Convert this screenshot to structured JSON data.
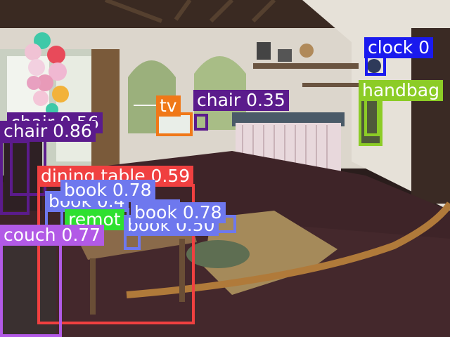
{
  "image": {
    "description_title": "Object detection overlay on indoor room photo"
  },
  "colors": {
    "chair": "#5b1b8c",
    "tv": "#f07818",
    "clock": "#1a1aee",
    "handbag": "#8ccc26",
    "dining_table": "#f04040",
    "book": "#6e78ee",
    "remote": "#2ee030",
    "couch": "#b25ae6"
  },
  "detections": [
    {
      "id": "chair-bg",
      "class": "chair",
      "score": "0.56",
      "label": "chair 0.56"
    },
    {
      "id": "chair-left",
      "class": "chair",
      "score": "0.86",
      "label": "chair 0.86"
    },
    {
      "id": "chair-back",
      "class": "chair",
      "score": "0.35",
      "label": "chair 0.35"
    },
    {
      "id": "tv",
      "class": "tv",
      "score": "",
      "label": "tv"
    },
    {
      "id": "clock",
      "class": "clock",
      "score": "0",
      "label": "clock 0"
    },
    {
      "id": "handbag",
      "class": "handbag",
      "score": "",
      "label": "handbag"
    },
    {
      "id": "dining-table",
      "class": "dining_table",
      "score": "0.59",
      "label": "dining table 0.59"
    },
    {
      "id": "book-a",
      "class": "book",
      "score": "0.78",
      "label": "book 0.78"
    },
    {
      "id": "book-b",
      "class": "book",
      "score": "",
      "label": "book 0.4"
    },
    {
      "id": "remote",
      "class": "remote",
      "score": "",
      "label": "remot"
    },
    {
      "id": "book-d",
      "class": "book",
      "score": "0.50",
      "label": "book 0.50"
    },
    {
      "id": "book-c",
      "class": "book",
      "score": "0.78",
      "label": "book 0.78"
    },
    {
      "id": "couch",
      "class": "couch",
      "score": "0.77",
      "label": "couch 0.77"
    }
  ]
}
